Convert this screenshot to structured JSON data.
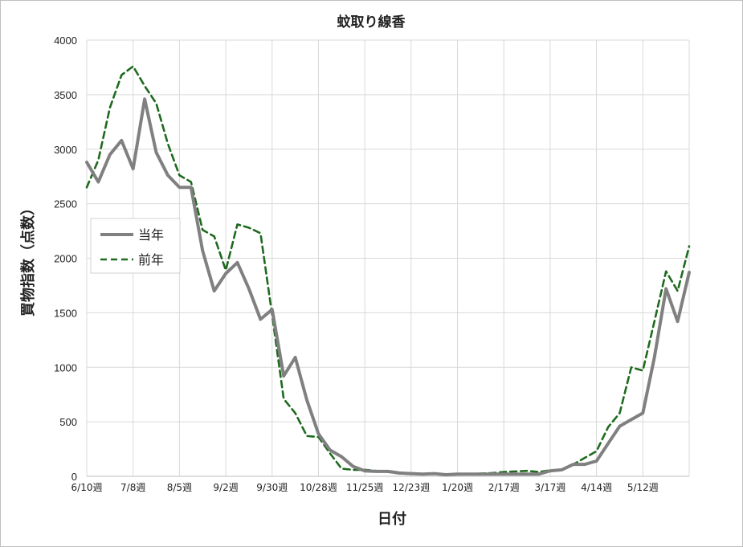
{
  "chart_data": {
    "type": "line",
    "title": "蚊取り線香",
    "xlabel": "日付",
    "ylabel": "買物指数（点数）",
    "ylim": [
      0,
      4000
    ],
    "yticks": [
      0,
      500,
      1000,
      1500,
      2000,
      2500,
      3000,
      3500,
      4000
    ],
    "xtick_labels": [
      "6/10週",
      "7/8週",
      "8/5週",
      "9/2週",
      "9/30週",
      "10/28週",
      "11/25週",
      "12/23週",
      "1/20週",
      "2/17週",
      "3/17週",
      "4/14週",
      "5/12週"
    ],
    "grid": true,
    "legend_position": "left-middle",
    "series": [
      {
        "name": "当年",
        "color": "#808080",
        "style": "solid",
        "values": [
          2880,
          2700,
          2950,
          3080,
          2820,
          3460,
          2970,
          2760,
          2650,
          2650,
          2070,
          1700,
          1860,
          1960,
          1720,
          1440,
          1530,
          920,
          1090,
          700,
          390,
          240,
          180,
          90,
          50,
          45,
          45,
          30,
          25,
          20,
          25,
          15,
          20,
          20,
          20,
          20,
          20,
          20,
          20,
          20,
          50,
          60,
          110,
          110,
          140,
          300,
          460,
          520,
          580,
          1090,
          1720,
          1420,
          1870
        ]
      },
      {
        "name": "前年",
        "color": "#1f6a1f",
        "style": "dashed",
        "values": [
          2650,
          2900,
          3380,
          3680,
          3760,
          3580,
          3420,
          3050,
          2760,
          2700,
          2260,
          2200,
          1890,
          2310,
          2280,
          2230,
          1480,
          710,
          580,
          370,
          360,
          210,
          70,
          60,
          60,
          50,
          40,
          25,
          20,
          20,
          20,
          15,
          20,
          20,
          25,
          30,
          40,
          45,
          50,
          40,
          55,
          60,
          110,
          170,
          230,
          450,
          580,
          1000,
          970,
          1420,
          1880,
          1700,
          2110
        ]
      }
    ]
  }
}
